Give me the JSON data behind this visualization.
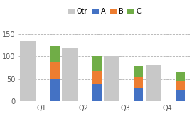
{
  "categories": [
    "Q1",
    "Q2",
    "Q3",
    "Q4"
  ],
  "qtr_values": [
    135,
    118,
    100,
    82
  ],
  "a_values": [
    50,
    38,
    30,
    25
  ],
  "b_values": [
    38,
    30,
    25,
    20
  ],
  "c_values": [
    35,
    32,
    25,
    20
  ],
  "qtr_color": "#c8c8c8",
  "a_color": "#4472c4",
  "b_color": "#ed7d31",
  "c_color": "#70ad47",
  "legend_labels": [
    "Qtr",
    "A",
    "B",
    "C"
  ],
  "ylim": [
    0,
    170
  ],
  "yticks": [
    0,
    50,
    100,
    150
  ],
  "qtr_bar_width": 0.38,
  "stack_bar_width": 0.22,
  "background_color": "#ffffff",
  "grid_color": "#b0b0b0"
}
